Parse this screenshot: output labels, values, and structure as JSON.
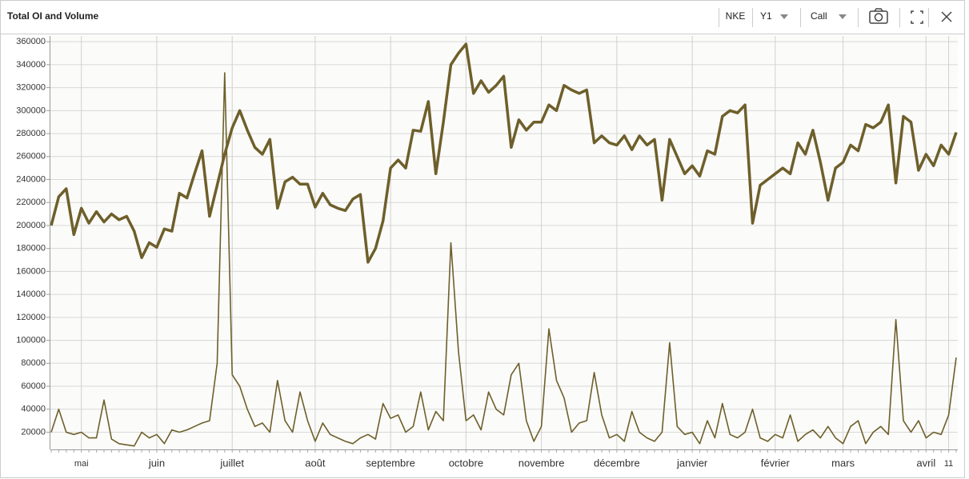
{
  "toolbar": {
    "symbol": "NKE",
    "period": "Y1",
    "option_type": "Call"
  },
  "chart_data": {
    "type": "line",
    "title": "Total OI and Volume",
    "categories": [
      null,
      null,
      null,
      null,
      "mai",
      null,
      null,
      null,
      null,
      null,
      null,
      null,
      null,
      null,
      "juin",
      null,
      null,
      null,
      null,
      null,
      null,
      null,
      null,
      null,
      "juillet",
      null,
      null,
      null,
      null,
      null,
      null,
      null,
      null,
      null,
      null,
      "août",
      null,
      null,
      null,
      null,
      null,
      null,
      null,
      null,
      null,
      "septembre",
      null,
      null,
      null,
      null,
      null,
      null,
      null,
      null,
      null,
      "octobre",
      null,
      null,
      null,
      null,
      null,
      null,
      null,
      null,
      null,
      "novembre",
      null,
      null,
      null,
      null,
      null,
      null,
      null,
      null,
      null,
      "décembre",
      null,
      null,
      null,
      null,
      null,
      null,
      null,
      null,
      null,
      "janvier",
      null,
      null,
      null,
      null,
      null,
      null,
      null,
      null,
      null,
      null,
      "février",
      null,
      null,
      null,
      null,
      null,
      null,
      null,
      null,
      "mars",
      null,
      null,
      null,
      null,
      null,
      null,
      null,
      null,
      null,
      null,
      "avril",
      null,
      null,
      "11",
      null
    ],
    "series": [
      {
        "color": "#6e5f2b",
        "width": 3.5,
        "values": [
          200000,
          225000,
          232000,
          192000,
          215000,
          202000,
          212000,
          203000,
          210000,
          205000,
          208000,
          195000,
          172000,
          185000,
          181000,
          197000,
          195000,
          228000,
          224000,
          245000,
          265000,
          208000,
          235000,
          262000,
          285000,
          300000,
          283000,
          268000,
          262000,
          275000,
          215000,
          238000,
          242000,
          236000,
          236000,
          216000,
          228000,
          218000,
          215000,
          213000,
          223000,
          227000,
          168000,
          180000,
          204000,
          250000,
          257000,
          250000,
          283000,
          282000,
          308000,
          245000,
          290000,
          340000,
          350000,
          358000,
          315000,
          326000,
          316000,
          322000,
          330000,
          268000,
          292000,
          283000,
          290000,
          290000,
          305000,
          300000,
          322000,
          318000,
          315000,
          318000,
          272000,
          278000,
          272000,
          270000,
          278000,
          266000,
          278000,
          270000,
          275000,
          222000,
          275000,
          260000,
          245000,
          252000,
          243000,
          265000,
          262000,
          295000,
          300000,
          298000,
          305000,
          202000,
          235000,
          240000,
          245000,
          250000,
          245000,
          272000,
          262000,
          283000,
          255000,
          222000,
          250000,
          255000,
          270000,
          265000,
          288000,
          285000,
          290000,
          305000,
          237000,
          295000,
          290000,
          248000,
          262000,
          252000,
          270000,
          262000,
          281000
        ]
      },
      {
        "color": "#6e5f2b",
        "width": 1.6,
        "values": [
          20000,
          40000,
          20000,
          18000,
          20000,
          15000,
          15000,
          48000,
          14000,
          10000,
          9000,
          8000,
          20000,
          15000,
          18000,
          10000,
          22000,
          20000,
          22000,
          25000,
          28000,
          30000,
          80000,
          333000,
          70000,
          60000,
          40000,
          25000,
          28000,
          20000,
          65000,
          30000,
          20000,
          55000,
          30000,
          12000,
          28000,
          18000,
          15000,
          12000,
          10000,
          15000,
          18000,
          14000,
          45000,
          32000,
          35000,
          20000,
          25000,
          55000,
          22000,
          38000,
          30000,
          185000,
          90000,
          30000,
          35000,
          22000,
          55000,
          40000,
          35000,
          70000,
          80000,
          30000,
          12000,
          25000,
          110000,
          65000,
          50000,
          20000,
          28000,
          30000,
          72000,
          35000,
          15000,
          18000,
          12000,
          38000,
          20000,
          15000,
          12000,
          20000,
          98000,
          25000,
          18000,
          20000,
          10000,
          30000,
          15000,
          45000,
          18000,
          15000,
          20000,
          40000,
          15000,
          12000,
          18000,
          15000,
          35000,
          12000,
          18000,
          22000,
          15000,
          25000,
          15000,
          10000,
          25000,
          30000,
          10000,
          20000,
          25000,
          18000,
          118000,
          30000,
          20000,
          30000,
          15000,
          20000,
          18000,
          35000,
          85000
        ]
      }
    ],
    "ylim": [
      5000,
      365000
    ],
    "yticks": [
      20000,
      40000,
      60000,
      80000,
      100000,
      120000,
      140000,
      160000,
      180000,
      200000,
      220000,
      240000,
      260000,
      280000,
      300000,
      320000,
      340000,
      360000
    ],
    "grid": true
  }
}
